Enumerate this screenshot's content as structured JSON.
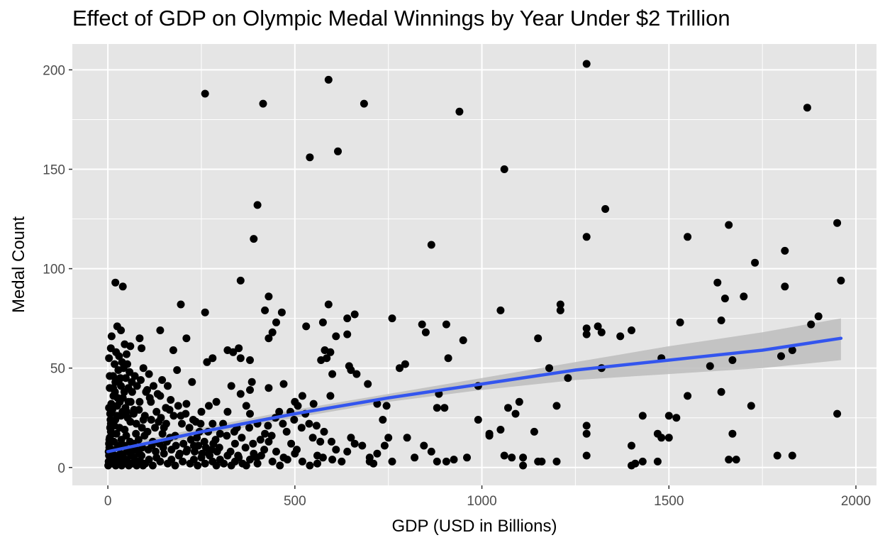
{
  "chart_data": {
    "type": "scatter",
    "title": "Effect of GDP on Olympic Medal Winnings by Year Under $2 Trillion",
    "xlabel": "GDP (USD in Billions)",
    "ylabel": "Medal Count",
    "xlim": [
      -95,
      2055
    ],
    "ylim": [
      -9,
      213
    ],
    "x_ticks": [
      0,
      500,
      1000,
      1500,
      2000
    ],
    "y_ticks": [
      0,
      50,
      100,
      150,
      200
    ],
    "x_tick_labels": [
      "0",
      "500",
      "1000",
      "1500",
      "2000"
    ],
    "y_tick_labels": [
      "0",
      "50",
      "100",
      "150",
      "200"
    ],
    "grid": true,
    "colors": {
      "panel": "#e5e5e5",
      "grid": "#ffffff",
      "points": "#000000",
      "trend": "#3355ee",
      "band": "#bdbdbd"
    },
    "trend": {
      "x": [
        0,
        250,
        500,
        750,
        1000,
        1250,
        1500,
        1750,
        1960
      ],
      "y": [
        8,
        18,
        27,
        35,
        42,
        49,
        54,
        59,
        65
      ],
      "lower": [
        6,
        16,
        25,
        33,
        39,
        44,
        47,
        50,
        54
      ],
      "upper": [
        10,
        20,
        29,
        37,
        45,
        53,
        61,
        68,
        75
      ]
    },
    "points": [
      [
        260,
        188
      ],
      [
        415,
        183
      ],
      [
        590,
        195
      ],
      [
        685,
        183
      ],
      [
        940,
        179
      ],
      [
        1280,
        203
      ],
      [
        1870,
        181
      ],
      [
        540,
        156
      ],
      [
        615,
        159
      ],
      [
        1060,
        150
      ],
      [
        400,
        132
      ],
      [
        1330,
        130
      ],
      [
        390,
        115
      ],
      [
        865,
        112
      ],
      [
        1280,
        116
      ],
      [
        1550,
        116
      ],
      [
        1660,
        122
      ],
      [
        1950,
        123
      ],
      [
        1730,
        103
      ],
      [
        1810,
        109
      ],
      [
        20,
        93
      ],
      [
        40,
        91
      ],
      [
        355,
        94
      ],
      [
        1960,
        94
      ],
      [
        1630,
        93
      ],
      [
        1810,
        91
      ],
      [
        195,
        82
      ],
      [
        430,
        86
      ],
      [
        590,
        82
      ],
      [
        1210,
        82
      ],
      [
        1650,
        85
      ],
      [
        1700,
        86
      ],
      [
        1900,
        76
      ],
      [
        260,
        78
      ],
      [
        420,
        79
      ],
      [
        465,
        78
      ],
      [
        640,
        75
      ],
      [
        660,
        77
      ],
      [
        760,
        75
      ],
      [
        1050,
        79
      ],
      [
        1210,
        79
      ],
      [
        25,
        71
      ],
      [
        35,
        69
      ],
      [
        440,
        68
      ],
      [
        450,
        73
      ],
      [
        530,
        71
      ],
      [
        575,
        73
      ],
      [
        610,
        66
      ],
      [
        640,
        67
      ],
      [
        840,
        72
      ],
      [
        850,
        68
      ],
      [
        905,
        72
      ],
      [
        950,
        64
      ],
      [
        1150,
        65
      ],
      [
        1280,
        70
      ],
      [
        1280,
        67
      ],
      [
        1310,
        71
      ],
      [
        1320,
        68
      ],
      [
        1370,
        66
      ],
      [
        1400,
        69
      ],
      [
        1530,
        73
      ],
      [
        1640,
        74
      ],
      [
        1880,
        72
      ],
      [
        10,
        66
      ],
      [
        85,
        65
      ],
      [
        140,
        69
      ],
      [
        210,
        65
      ],
      [
        430,
        65
      ],
      [
        45,
        62
      ],
      [
        60,
        61
      ],
      [
        30,
        56
      ],
      [
        50,
        57
      ],
      [
        90,
        60
      ],
      [
        175,
        59
      ],
      [
        265,
        53
      ],
      [
        280,
        55
      ],
      [
        320,
        59
      ],
      [
        335,
        58
      ],
      [
        350,
        60
      ],
      [
        355,
        55
      ],
      [
        380,
        54
      ],
      [
        570,
        54
      ],
      [
        580,
        59
      ],
      [
        585,
        55
      ],
      [
        595,
        58
      ],
      [
        600,
        47
      ],
      [
        645,
        51
      ],
      [
        650,
        49
      ],
      [
        665,
        47
      ],
      [
        910,
        55
      ],
      [
        1480,
        55
      ],
      [
        1670,
        54
      ],
      [
        1800,
        56
      ],
      [
        1830,
        59
      ],
      [
        1610,
        51
      ],
      [
        1180,
        50
      ],
      [
        1320,
        50
      ],
      [
        795,
        52
      ],
      [
        780,
        50
      ],
      [
        5,
        46
      ],
      [
        20,
        43
      ],
      [
        55,
        40
      ],
      [
        110,
        47
      ],
      [
        145,
        44
      ],
      [
        160,
        41
      ],
      [
        185,
        49
      ],
      [
        225,
        43
      ],
      [
        330,
        41
      ],
      [
        355,
        37
      ],
      [
        380,
        39
      ],
      [
        385,
        43
      ],
      [
        430,
        40
      ],
      [
        470,
        42
      ],
      [
        695,
        42
      ],
      [
        885,
        37
      ],
      [
        990,
        41
      ],
      [
        1230,
        45
      ],
      [
        520,
        36
      ],
      [
        550,
        32
      ],
      [
        500,
        33
      ],
      [
        595,
        36
      ],
      [
        720,
        32
      ],
      [
        745,
        31
      ],
      [
        735,
        24
      ],
      [
        1070,
        30
      ],
      [
        1090,
        27
      ],
      [
        1100,
        33
      ],
      [
        1050,
        19
      ],
      [
        1020,
        17
      ],
      [
        880,
        30
      ],
      [
        900,
        30
      ],
      [
        1200,
        31
      ],
      [
        1280,
        21
      ],
      [
        1430,
        26
      ],
      [
        1500,
        26
      ],
      [
        1520,
        25
      ],
      [
        1550,
        36
      ],
      [
        1640,
        38
      ],
      [
        1720,
        31
      ],
      [
        1950,
        27
      ],
      [
        1280,
        17
      ],
      [
        1400,
        11
      ],
      [
        1470,
        17
      ],
      [
        1480,
        15
      ],
      [
        1500,
        15
      ],
      [
        1670,
        17
      ],
      [
        1140,
        18
      ],
      [
        990,
        24
      ],
      [
        1020,
        16
      ],
      [
        800,
        15
      ],
      [
        750,
        15
      ],
      [
        845,
        11
      ],
      [
        865,
        8
      ],
      [
        680,
        11
      ],
      [
        740,
        11
      ],
      [
        700,
        5
      ],
      [
        710,
        2
      ],
      [
        1060,
        6
      ],
      [
        1080,
        5
      ],
      [
        1110,
        5
      ],
      [
        1110,
        1
      ],
      [
        1150,
        3
      ],
      [
        1160,
        3
      ],
      [
        1200,
        3
      ],
      [
        1280,
        6
      ],
      [
        1400,
        1
      ],
      [
        1410,
        2
      ],
      [
        1430,
        3
      ],
      [
        1470,
        3
      ],
      [
        1660,
        4
      ],
      [
        1680,
        4
      ],
      [
        1790,
        6
      ],
      [
        1830,
        6
      ],
      [
        880,
        3
      ],
      [
        905,
        3
      ],
      [
        925,
        4
      ],
      [
        960,
        5
      ],
      [
        640,
        8
      ],
      [
        625,
        3
      ],
      [
        575,
        5
      ],
      [
        560,
        2
      ],
      [
        505,
        9
      ],
      [
        490,
        12
      ],
      [
        470,
        5
      ],
      [
        450,
        8
      ],
      [
        430,
        13
      ],
      [
        420,
        17
      ],
      [
        400,
        22
      ],
      [
        380,
        27
      ],
      [
        370,
        31
      ],
      [
        345,
        20
      ],
      [
        340,
        12
      ],
      [
        320,
        28
      ],
      [
        300,
        17
      ],
      [
        290,
        33
      ],
      [
        280,
        22
      ],
      [
        270,
        31
      ],
      [
        250,
        28
      ],
      [
        245,
        18
      ],
      [
        235,
        23
      ],
      [
        230,
        11
      ],
      [
        210,
        32
      ],
      [
        195,
        26
      ],
      [
        180,
        16
      ],
      [
        165,
        29
      ],
      [
        150,
        20
      ],
      [
        140,
        36
      ],
      [
        130,
        28
      ],
      [
        120,
        13
      ],
      [
        115,
        33
      ],
      [
        105,
        39
      ],
      [
        95,
        24
      ],
      [
        85,
        33
      ],
      [
        75,
        17
      ],
      [
        70,
        29
      ],
      [
        65,
        38
      ],
      [
        60,
        23
      ],
      [
        55,
        33
      ],
      [
        50,
        28
      ],
      [
        45,
        19
      ],
      [
        40,
        35
      ],
      [
        35,
        26
      ],
      [
        30,
        44
      ],
      [
        25,
        31
      ],
      [
        20,
        24
      ],
      [
        15,
        36
      ],
      [
        12,
        29
      ],
      [
        10,
        22
      ],
      [
        8,
        18
      ],
      [
        6,
        27
      ],
      [
        5,
        15
      ],
      [
        4,
        10
      ],
      [
        3,
        6
      ],
      [
        2,
        3
      ],
      [
        1,
        1
      ],
      [
        3,
        12
      ],
      [
        6,
        20
      ],
      [
        9,
        32
      ],
      [
        14,
        40
      ],
      [
        18,
        52
      ],
      [
        22,
        58
      ],
      [
        28,
        49
      ],
      [
        33,
        45
      ],
      [
        38,
        53
      ],
      [
        42,
        50
      ],
      [
        48,
        45
      ],
      [
        52,
        52
      ],
      [
        58,
        48
      ],
      [
        64,
        43
      ],
      [
        72,
        46
      ],
      [
        78,
        41
      ],
      [
        88,
        44
      ],
      [
        95,
        50
      ],
      [
        102,
        38
      ],
      [
        112,
        35
      ],
      [
        122,
        41
      ],
      [
        133,
        37
      ],
      [
        142,
        25
      ],
      [
        155,
        30
      ],
      [
        168,
        34
      ],
      [
        176,
        26
      ],
      [
        188,
        31
      ],
      [
        198,
        22
      ],
      [
        208,
        27
      ],
      [
        218,
        20
      ],
      [
        228,
        24
      ],
      [
        238,
        15
      ],
      [
        248,
        22
      ],
      [
        258,
        13
      ],
      [
        268,
        18
      ],
      [
        278,
        9
      ],
      [
        288,
        14
      ],
      [
        298,
        10
      ],
      [
        308,
        22
      ],
      [
        318,
        16
      ],
      [
        328,
        8
      ],
      [
        338,
        18
      ],
      [
        348,
        6
      ],
      [
        358,
        15
      ],
      [
        368,
        10
      ],
      [
        378,
        20
      ],
      [
        388,
        12
      ],
      [
        398,
        5
      ],
      [
        408,
        14
      ],
      [
        418,
        9
      ],
      [
        428,
        21
      ],
      [
        438,
        16
      ],
      [
        448,
        25
      ],
      [
        458,
        28
      ],
      [
        468,
        22
      ],
      [
        478,
        18
      ],
      [
        488,
        28
      ],
      [
        498,
        24
      ],
      [
        508,
        31
      ],
      [
        518,
        20
      ],
      [
        528,
        27
      ],
      [
        538,
        22
      ],
      [
        548,
        15
      ],
      [
        558,
        21
      ],
      [
        568,
        13
      ],
      [
        578,
        18
      ],
      [
        598,
        13
      ],
      [
        610,
        9
      ],
      [
        650,
        15
      ],
      [
        660,
        12
      ],
      [
        700,
        3
      ],
      [
        720,
        7
      ],
      [
        760,
        3
      ],
      [
        820,
        5
      ],
      [
        30,
        3
      ],
      [
        40,
        2
      ],
      [
        50,
        4
      ],
      [
        60,
        2
      ],
      [
        70,
        5
      ],
      [
        80,
        3
      ],
      [
        90,
        6
      ],
      [
        100,
        2
      ],
      [
        110,
        4
      ],
      [
        120,
        1
      ],
      [
        130,
        5
      ],
      [
        140,
        3
      ],
      [
        150,
        7
      ],
      [
        160,
        2
      ],
      [
        170,
        4
      ],
      [
        180,
        1
      ],
      [
        190,
        6
      ],
      [
        200,
        3
      ],
      [
        210,
        8
      ],
      [
        220,
        2
      ],
      [
        230,
        4
      ],
      [
        240,
        1
      ],
      [
        250,
        5
      ],
      [
        260,
        2
      ],
      [
        270,
        7
      ],
      [
        280,
        3
      ],
      [
        290,
        1
      ],
      [
        300,
        4
      ],
      [
        310,
        2
      ],
      [
        320,
        6
      ],
      [
        330,
        1
      ],
      [
        340,
        3
      ],
      [
        350,
        5
      ],
      [
        360,
        2
      ],
      [
        370,
        1
      ],
      [
        380,
        4
      ],
      [
        390,
        7
      ],
      [
        400,
        2
      ],
      [
        410,
        6
      ],
      [
        440,
        3
      ],
      [
        460,
        1
      ],
      [
        480,
        4
      ],
      [
        500,
        7
      ],
      [
        520,
        3
      ],
      [
        540,
        1
      ],
      [
        560,
        6
      ],
      [
        600,
        4
      ],
      [
        2,
        8
      ],
      [
        4,
        14
      ],
      [
        7,
        24
      ],
      [
        11,
        9
      ],
      [
        16,
        13
      ],
      [
        19,
        6
      ],
      [
        23,
        17
      ],
      [
        27,
        11
      ],
      [
        31,
        20
      ],
      [
        36,
        14
      ],
      [
        44,
        11
      ],
      [
        49,
        16
      ],
      [
        54,
        9
      ],
      [
        59,
        13
      ],
      [
        63,
        7
      ],
      [
        68,
        12
      ],
      [
        74,
        9
      ],
      [
        82,
        14
      ],
      [
        92,
        10
      ],
      [
        98,
        16
      ],
      [
        108,
        9
      ],
      [
        118,
        11
      ],
      [
        128,
        8
      ],
      [
        138,
        12
      ],
      [
        148,
        10
      ],
      [
        158,
        13
      ],
      [
        170,
        9
      ],
      [
        182,
        11
      ],
      [
        192,
        7
      ],
      [
        202,
        12
      ],
      [
        212,
        9
      ],
      [
        222,
        14
      ],
      [
        232,
        8
      ],
      [
        242,
        11
      ],
      [
        252,
        7
      ],
      [
        262,
        10
      ],
      [
        272,
        6
      ],
      [
        282,
        12
      ],
      [
        292,
        8
      ],
      [
        13,
        2
      ],
      [
        17,
        5
      ],
      [
        21,
        1
      ],
      [
        26,
        4
      ],
      [
        29,
        2
      ],
      [
        34,
        7
      ],
      [
        37,
        1
      ],
      [
        41,
        5
      ],
      [
        46,
        3
      ],
      [
        51,
        8
      ],
      [
        56,
        1
      ],
      [
        62,
        6
      ],
      [
        67,
        2
      ],
      [
        71,
        9
      ],
      [
        77,
        1
      ],
      [
        84,
        7
      ],
      [
        87,
        3
      ],
      [
        94,
        1
      ],
      [
        3,
        30
      ],
      [
        5,
        40
      ],
      [
        8,
        22
      ],
      [
        12,
        17
      ],
      [
        17,
        21
      ],
      [
        24,
        26
      ],
      [
        32,
        33
      ],
      [
        39,
        28
      ],
      [
        47,
        30
      ],
      [
        53,
        25
      ],
      [
        61,
        33
      ],
      [
        69,
        27
      ],
      [
        76,
        22
      ],
      [
        83,
        29
      ],
      [
        91,
        20
      ],
      [
        99,
        26
      ],
      [
        106,
        18
      ],
      [
        116,
        24
      ],
      [
        126,
        20
      ],
      [
        136,
        23
      ],
      [
        146,
        17
      ],
      [
        156,
        22
      ],
      [
        166,
        15
      ],
      [
        3,
        55
      ],
      [
        8,
        60
      ],
      [
        14,
        46
      ],
      [
        19,
        38
      ],
      [
        26,
        35
      ],
      [
        35,
        41
      ],
      [
        44,
        38
      ]
    ]
  }
}
